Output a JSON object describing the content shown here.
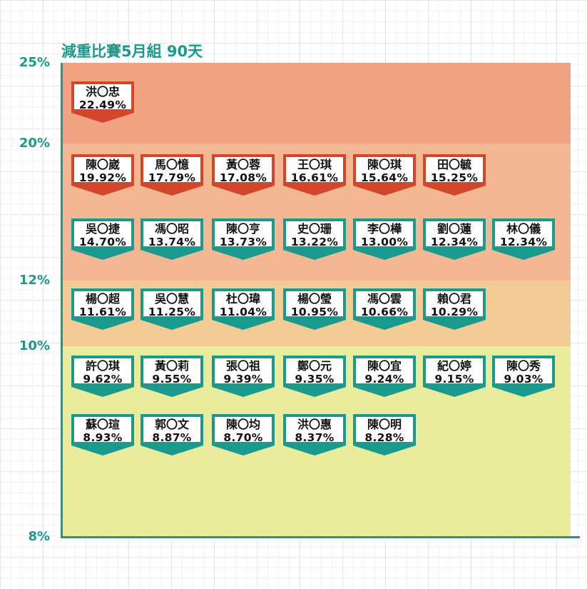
{
  "chart_data": {
    "type": "table",
    "title": "減重比賽5月組  90天",
    "y_ticks": [
      "25%",
      "20%",
      "12%",
      "10%",
      "8%"
    ],
    "bands": [
      {
        "from": 20,
        "to": 25,
        "color": "#f2a383"
      },
      {
        "from": 12,
        "to": 20,
        "color": "#f3b893"
      },
      {
        "from": 10,
        "to": 12,
        "color": "#f3cc95"
      },
      {
        "from": 8,
        "to": 10,
        "color": "#e9ec9c"
      }
    ],
    "tier_colors": {
      "red": "#d4462a",
      "teal": "#1a9a8c"
    },
    "rows": [
      [
        {
          "name": "洪〇忠",
          "value": 22.49,
          "pct": "22.49%",
          "color": "red"
        }
      ],
      [
        {
          "name": "陳〇崴",
          "value": 19.92,
          "pct": "19.92%",
          "color": "red"
        },
        {
          "name": "馬〇憶",
          "value": 17.79,
          "pct": "17.79%",
          "color": "red"
        },
        {
          "name": "黃〇蓉",
          "value": 17.08,
          "pct": "17.08%",
          "color": "red"
        },
        {
          "name": "王〇琪",
          "value": 16.61,
          "pct": "16.61%",
          "color": "red"
        },
        {
          "name": "陳〇琪",
          "value": 15.64,
          "pct": "15.64%",
          "color": "red"
        },
        {
          "name": "田〇毓",
          "value": 15.25,
          "pct": "15.25%",
          "color": "red"
        }
      ],
      [
        {
          "name": "吳〇捷",
          "value": 14.7,
          "pct": "14.70%",
          "color": "teal"
        },
        {
          "name": "馮〇昭",
          "value": 13.74,
          "pct": "13.74%",
          "color": "teal"
        },
        {
          "name": "陳〇亨",
          "value": 13.73,
          "pct": "13.73%",
          "color": "teal"
        },
        {
          "name": "史〇珊",
          "value": 13.22,
          "pct": "13.22%",
          "color": "teal"
        },
        {
          "name": "李〇樺",
          "value": 13.0,
          "pct": "13.00%",
          "color": "teal"
        },
        {
          "name": "劉〇蓮",
          "value": 12.34,
          "pct": "12.34%",
          "color": "teal"
        },
        {
          "name": "林〇儀",
          "value": 12.34,
          "pct": "12.34%",
          "color": "teal"
        }
      ],
      [
        {
          "name": "楊〇超",
          "value": 11.61,
          "pct": "11.61%",
          "color": "teal"
        },
        {
          "name": "吳〇慧",
          "value": 11.25,
          "pct": "11.25%",
          "color": "teal"
        },
        {
          "name": "杜〇瑋",
          "value": 11.04,
          "pct": "11.04%",
          "color": "teal"
        },
        {
          "name": "楊〇瑩",
          "value": 10.95,
          "pct": "10.95%",
          "color": "teal"
        },
        {
          "name": "馮〇雲",
          "value": 10.66,
          "pct": "10.66%",
          "color": "teal"
        },
        {
          "name": "賴〇君",
          "value": 10.29,
          "pct": "10.29%",
          "color": "teal"
        }
      ],
      [
        {
          "name": "許〇琪",
          "value": 9.62,
          "pct": "9.62%",
          "color": "teal"
        },
        {
          "name": "黃〇莉",
          "value": 9.55,
          "pct": "9.55%",
          "color": "teal"
        },
        {
          "name": "張〇祖",
          "value": 9.39,
          "pct": "9.39%",
          "color": "teal"
        },
        {
          "name": "鄭〇元",
          "value": 9.35,
          "pct": "9.35%",
          "color": "teal"
        },
        {
          "name": "陳〇宜",
          "value": 9.24,
          "pct": "9.24%",
          "color": "teal"
        },
        {
          "name": "紀〇婷",
          "value": 9.15,
          "pct": "9.15%",
          "color": "teal"
        },
        {
          "name": "陳〇秀",
          "value": 9.03,
          "pct": "9.03%",
          "color": "teal"
        }
      ],
      [
        {
          "name": "蘇〇瑄",
          "value": 8.93,
          "pct": "8.93%",
          "color": "teal"
        },
        {
          "name": "郭〇文",
          "value": 8.87,
          "pct": "8.87%",
          "color": "teal"
        },
        {
          "name": "陳〇均",
          "value": 8.7,
          "pct": "8.70%",
          "color": "teal"
        },
        {
          "name": "洪〇惠",
          "value": 8.37,
          "pct": "8.37%",
          "color": "teal"
        },
        {
          "name": "陳〇明",
          "value": 8.28,
          "pct": "8.28%",
          "color": "teal"
        }
      ]
    ]
  }
}
